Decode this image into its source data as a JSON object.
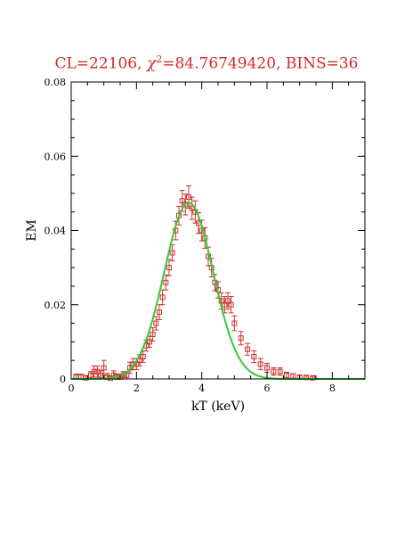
{
  "chart_data": {
    "type": "scatter",
    "title": {
      "cl": "CL=22106, ",
      "chi_symbol": "χ",
      "chi_power": "2",
      "chi_value": "=84.76749420, BINS=36"
    },
    "xlabel": "kT (keV)",
    "ylabel": "EM",
    "xlim": [
      0,
      9
    ],
    "ylim": [
      0,
      0.08
    ],
    "x_ticks": [
      0,
      2,
      4,
      6,
      8
    ],
    "y_ticks": [
      0,
      0.02,
      0.04,
      0.06,
      0.08
    ],
    "x_tick_labels": [
      "0",
      "2",
      "4",
      "6",
      "8"
    ],
    "y_tick_labels": [
      "0",
      "0.02",
      "0.04",
      "0.06",
      "0.08"
    ],
    "colors": {
      "data": "#cc3333",
      "model": "#33cc33",
      "axis": "#000000",
      "title": "#d42a2a"
    },
    "series": [
      {
        "kind": "points_with_error_bars",
        "points": [
          [
            0.15,
            0.0005,
            0.0008
          ],
          [
            0.3,
            0.0005,
            0.0008
          ],
          [
            0.45,
            0.0003,
            0.0006
          ],
          [
            0.6,
            0.001,
            0.001
          ],
          [
            0.7,
            0.002,
            0.0015
          ],
          [
            0.8,
            0.002,
            0.0015
          ],
          [
            0.9,
            0.001,
            0.0012
          ],
          [
            1.0,
            0.003,
            0.002
          ],
          [
            1.1,
            0.0005,
            0.001
          ],
          [
            1.2,
            0.0002,
            0.0005
          ],
          [
            1.3,
            0.001,
            0.0012
          ],
          [
            1.4,
            0.0005,
            0.0008
          ],
          [
            1.5,
            0.0005,
            0.0008
          ],
          [
            1.6,
            0.001,
            0.001
          ],
          [
            1.7,
            0.001,
            0.001
          ],
          [
            1.8,
            0.003,
            0.0015
          ],
          [
            1.9,
            0.004,
            0.0015
          ],
          [
            2.0,
            0.004,
            0.0015
          ],
          [
            2.1,
            0.005,
            0.0015
          ],
          [
            2.2,
            0.006,
            0.0015
          ],
          [
            2.3,
            0.009,
            0.0015
          ],
          [
            2.4,
            0.01,
            0.0015
          ],
          [
            2.5,
            0.012,
            0.0018
          ],
          [
            2.6,
            0.015,
            0.0018
          ],
          [
            2.7,
            0.018,
            0.002
          ],
          [
            2.8,
            0.022,
            0.002
          ],
          [
            2.9,
            0.026,
            0.002
          ],
          [
            3.0,
            0.03,
            0.0022
          ],
          [
            3.1,
            0.034,
            0.0022
          ],
          [
            3.2,
            0.04,
            0.0025
          ],
          [
            3.3,
            0.044,
            0.0025
          ],
          [
            3.4,
            0.048,
            0.0028
          ],
          [
            3.5,
            0.047,
            0.0028
          ],
          [
            3.6,
            0.049,
            0.003
          ],
          [
            3.7,
            0.046,
            0.003
          ],
          [
            3.8,
            0.045,
            0.003
          ],
          [
            3.9,
            0.042,
            0.0028
          ],
          [
            4.0,
            0.04,
            0.0028
          ],
          [
            4.1,
            0.038,
            0.0028
          ],
          [
            4.2,
            0.033,
            0.0025
          ],
          [
            4.3,
            0.03,
            0.0025
          ],
          [
            4.4,
            0.026,
            0.0022
          ],
          [
            4.5,
            0.024,
            0.0022
          ],
          [
            4.6,
            0.021,
            0.0022
          ],
          [
            4.7,
            0.02,
            0.0022
          ],
          [
            4.8,
            0.021,
            0.0022
          ],
          [
            4.9,
            0.02,
            0.0022
          ],
          [
            5.0,
            0.015,
            0.002
          ],
          [
            5.2,
            0.011,
            0.0018
          ],
          [
            5.4,
            0.008,
            0.0016
          ],
          [
            5.6,
            0.006,
            0.0016
          ],
          [
            5.8,
            0.004,
            0.0015
          ],
          [
            6.0,
            0.003,
            0.0012
          ],
          [
            6.2,
            0.002,
            0.001
          ],
          [
            6.4,
            0.002,
            0.001
          ],
          [
            6.6,
            0.001,
            0.0008
          ],
          [
            6.8,
            0.0008,
            0.0006
          ],
          [
            7.0,
            0.0005,
            0.0005
          ],
          [
            7.2,
            0.0004,
            0.0004
          ],
          [
            7.4,
            0.0003,
            0.0004
          ]
        ]
      },
      {
        "kind": "model_curve",
        "curve_type": "gaussian",
        "peak": 0.0475,
        "center": 3.6,
        "sigma": 0.75
      }
    ]
  }
}
